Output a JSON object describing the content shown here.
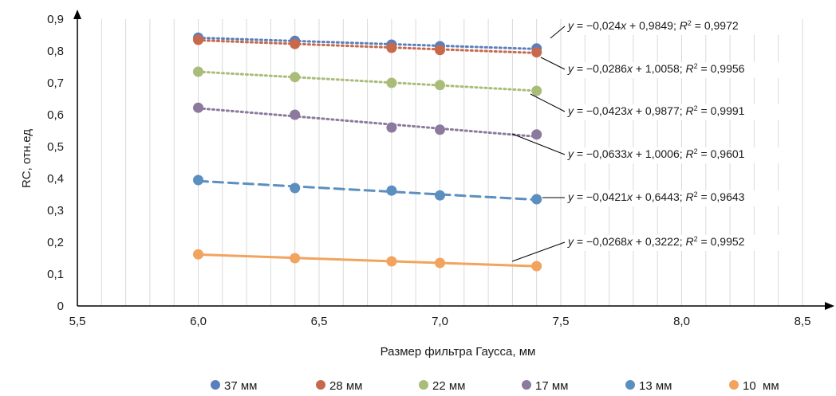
{
  "chart_data": {
    "type": "scatter",
    "title": "",
    "xlabel": "Размер фильтра Гаусса, мм",
    "ylabel": "RC, отн.ед",
    "xlim": [
      5.5,
      8.7
    ],
    "ylim": [
      0,
      0.9
    ],
    "x_ticks": [
      "5,5",
      "6,0",
      "6,5",
      "7,0",
      "7,5",
      "8,0",
      "8,5"
    ],
    "y_ticks": [
      "0",
      "0,1",
      "0,2",
      "0,3",
      "0,4",
      "0,5",
      "0,6",
      "0,7",
      "0,8",
      "0,9"
    ],
    "grid": "vertical minor gridlines every 0.1 on x",
    "legend_position": "bottom",
    "x": [
      6.0,
      6.4,
      6.8,
      7.0,
      7.4
    ],
    "series": [
      {
        "name": "37 мм",
        "color": "#5b7fbd",
        "trend": "dotted",
        "values": [
          0.842,
          0.832,
          0.82,
          0.815,
          0.808
        ],
        "equation": {
          "slope": "−0,024",
          "intercept": "+ 0,9849",
          "r2": "0,9972"
        }
      },
      {
        "name": "28 мм",
        "color": "#c8694b",
        "trend": "dotted",
        "values": [
          0.835,
          0.822,
          0.81,
          0.803,
          0.796
        ],
        "equation": {
          "slope": "−0,0286",
          "intercept": "+ 1,0058",
          "r2": "0,9956"
        }
      },
      {
        "name": "22 мм",
        "color": "#a9bc7a",
        "trend": "dotted",
        "values": [
          0.735,
          0.718,
          0.7,
          0.693,
          0.675
        ],
        "equation": {
          "slope": "−0,0423",
          "intercept": "+ 0,9877",
          "r2": "0,9991"
        }
      },
      {
        "name": "17 мм",
        "color": "#8b7a9e",
        "trend": "dotted",
        "values": [
          0.622,
          0.6,
          0.56,
          0.553,
          0.538
        ],
        "equation": {
          "slope": "−0,0633",
          "intercept": "+ 1,0006",
          "r2": "0,9601"
        }
      },
      {
        "name": "13 мм",
        "color": "#5b8fbf",
        "trend": "dashed",
        "values": [
          0.395,
          0.37,
          0.362,
          0.347,
          0.335
        ],
        "equation": {
          "slope": "−0,0421",
          "intercept": "+ 0,6443",
          "r2": "0,9643"
        }
      },
      {
        "name": "10  мм",
        "color": "#f2a35e",
        "trend": "solid",
        "values": [
          0.162,
          0.15,
          0.14,
          0.135,
          0.125
        ],
        "equation": {
          "slope": "−0,0268",
          "intercept": "+ 0,3222",
          "r2": "0,9952"
        }
      }
    ]
  }
}
